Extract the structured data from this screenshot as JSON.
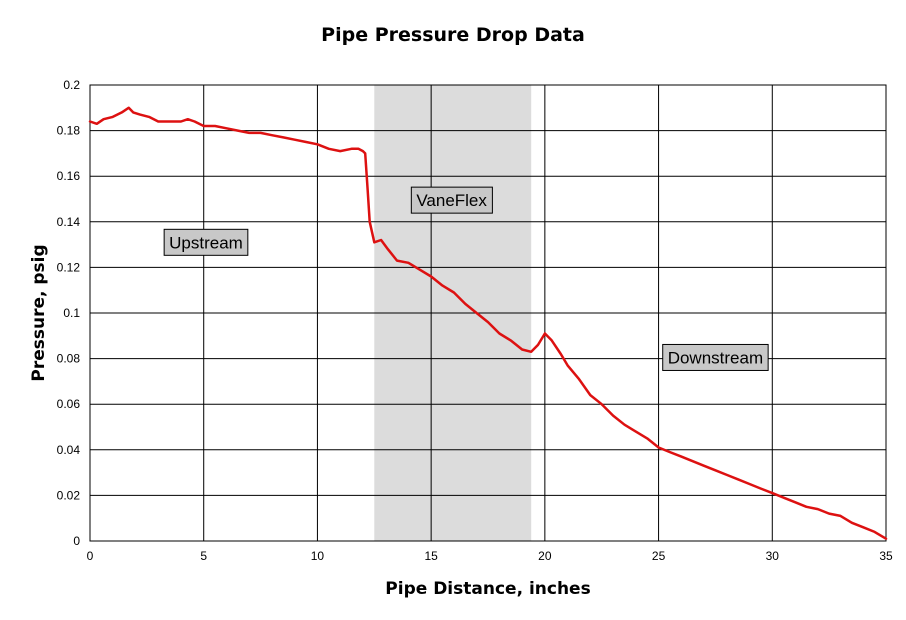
{
  "chart_data": {
    "type": "line",
    "title": "Pipe Pressure Drop Data",
    "xlabel": "Pipe Distance, inches",
    "ylabel": "Pressure, psig",
    "xlim": [
      0,
      35
    ],
    "ylim": [
      0,
      0.2
    ],
    "xticks": [
      "0",
      "5",
      "10",
      "15",
      "20",
      "25",
      "30",
      "35"
    ],
    "yticks": [
      "0",
      "0.02",
      "0.04",
      "0.06",
      "0.08",
      "0.1",
      "0.12",
      "0.14",
      "0.16",
      "0.18",
      "0.2"
    ],
    "grid": true,
    "shaded_region": {
      "x": [
        12.5,
        19.4
      ],
      "color": "#dcdcdc"
    },
    "annotations": [
      {
        "text": "Upstream",
        "x": 5.1,
        "y": 0.131
      },
      {
        "text": "VaneFlex",
        "x": 15.9,
        "y": 0.1495
      },
      {
        "text": "Downstream",
        "x": 27.5,
        "y": 0.0805
      }
    ],
    "line_color": "#dd1111",
    "x": [
      0,
      0.3,
      0.6,
      1.0,
      1.4,
      1.7,
      1.9,
      2.2,
      2.6,
      3.0,
      3.5,
      4.0,
      4.3,
      4.6,
      5.0,
      5.5,
      6.0,
      6.5,
      7.0,
      7.5,
      8.0,
      8.5,
      9.0,
      9.5,
      10.0,
      10.5,
      11.0,
      11.5,
      11.8,
      12.0,
      12.1,
      12.2,
      12.3,
      12.5,
      12.8,
      13.1,
      13.5,
      14.0,
      14.5,
      15.0,
      15.5,
      16.0,
      16.5,
      17.0,
      17.5,
      18.0,
      18.5,
      19.0,
      19.4,
      19.7,
      20.0,
      20.3,
      20.7,
      21.0,
      21.5,
      22.0,
      22.5,
      23.0,
      23.5,
      24.0,
      24.5,
      25.0,
      25.5,
      26.0,
      26.5,
      27.0,
      27.5,
      28.0,
      28.5,
      29.0,
      29.5,
      30.0,
      30.5,
      31.0,
      31.5,
      32.0,
      32.5,
      33.0,
      33.5,
      34.0,
      34.5,
      35.0
    ],
    "values": [
      0.184,
      0.183,
      0.185,
      0.186,
      0.188,
      0.19,
      0.188,
      0.187,
      0.186,
      0.184,
      0.184,
      0.184,
      0.185,
      0.184,
      0.182,
      0.182,
      0.181,
      0.18,
      0.179,
      0.179,
      0.178,
      0.177,
      0.176,
      0.175,
      0.174,
      0.172,
      0.171,
      0.172,
      0.172,
      0.171,
      0.17,
      0.155,
      0.14,
      0.131,
      0.132,
      0.128,
      0.123,
      0.122,
      0.119,
      0.116,
      0.112,
      0.109,
      0.104,
      0.1,
      0.096,
      0.091,
      0.088,
      0.084,
      0.083,
      0.086,
      0.091,
      0.088,
      0.082,
      0.077,
      0.071,
      0.064,
      0.06,
      0.055,
      0.051,
      0.048,
      0.045,
      0.041,
      0.039,
      0.037,
      0.035,
      0.033,
      0.031,
      0.029,
      0.027,
      0.025,
      0.023,
      0.021,
      0.019,
      0.017,
      0.015,
      0.014,
      0.012,
      0.011,
      0.008,
      0.006,
      0.004,
      0.001
    ]
  }
}
